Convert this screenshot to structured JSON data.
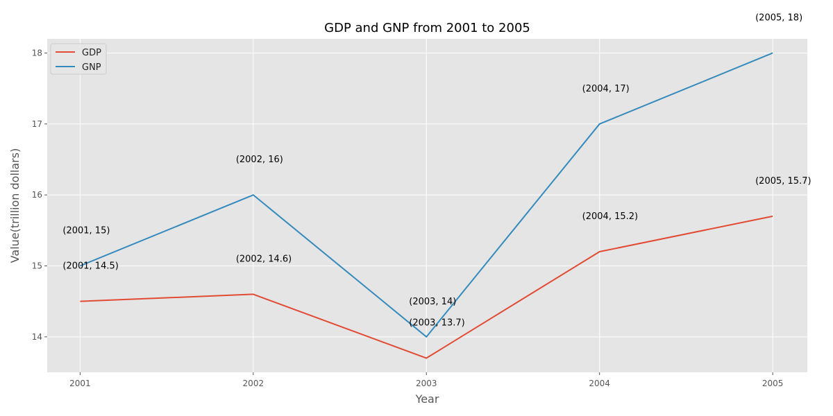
{
  "chart_data": {
    "type": "line",
    "title": "GDP and GNP from 2001 to 2005",
    "xlabel": "Year",
    "ylabel": "Value(trillion dollars)",
    "x": [
      2001,
      2002,
      2003,
      2004,
      2005
    ],
    "xlim": [
      2000.81,
      2005.2
    ],
    "ylim": [
      13.5,
      18.2
    ],
    "yticks": [
      14,
      15,
      16,
      17,
      18
    ],
    "grid": true,
    "legend_position": "top-left",
    "series": [
      {
        "name": "GDP",
        "color": "#E24A33",
        "values": [
          14.5,
          14.6,
          13.7,
          15.2,
          15.7
        ]
      },
      {
        "name": "GNP",
        "color": "#348ABD",
        "values": [
          15,
          16,
          14,
          17,
          18
        ]
      }
    ],
    "annotations": [
      {
        "text": "(2001, 14.5)",
        "x": 2001,
        "y": 14.5
      },
      {
        "text": "(2002, 14.6)",
        "x": 2002,
        "y": 14.6
      },
      {
        "text": "(2003, 13.7)",
        "x": 2003,
        "y": 13.7
      },
      {
        "text": "(2004, 15.2)",
        "x": 2004,
        "y": 15.2
      },
      {
        "text": "(2005, 15.7)",
        "x": 2005,
        "y": 15.7
      },
      {
        "text": "(2001, 15)",
        "x": 2001,
        "y": 15
      },
      {
        "text": "(2002, 16)",
        "x": 2002,
        "y": 16
      },
      {
        "text": "(2003, 14)",
        "x": 2003,
        "y": 14
      },
      {
        "text": "(2004, 17)",
        "x": 2004,
        "y": 17
      },
      {
        "text": "(2005, 18)",
        "x": 2005,
        "y": 18
      }
    ]
  }
}
